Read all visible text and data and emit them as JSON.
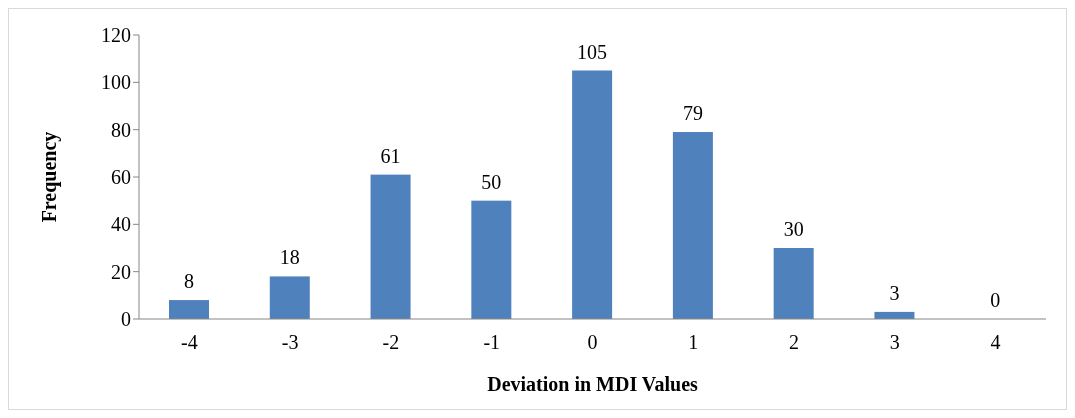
{
  "chart_data": {
    "type": "bar",
    "xlabel": "Deviation in MDI Values",
    "ylabel": "Frequency",
    "categories": [
      "-4",
      "-3",
      "-2",
      "-1",
      "0",
      "1",
      "2",
      "3",
      "4"
    ],
    "values": [
      8,
      18,
      61,
      50,
      105,
      79,
      30,
      3,
      0
    ],
    "color": "#4f81bd",
    "ylim": [
      0,
      120
    ],
    "yticks": [
      0,
      20,
      40,
      60,
      80,
      100,
      120
    ],
    "grid": false,
    "data_labels": true
  }
}
